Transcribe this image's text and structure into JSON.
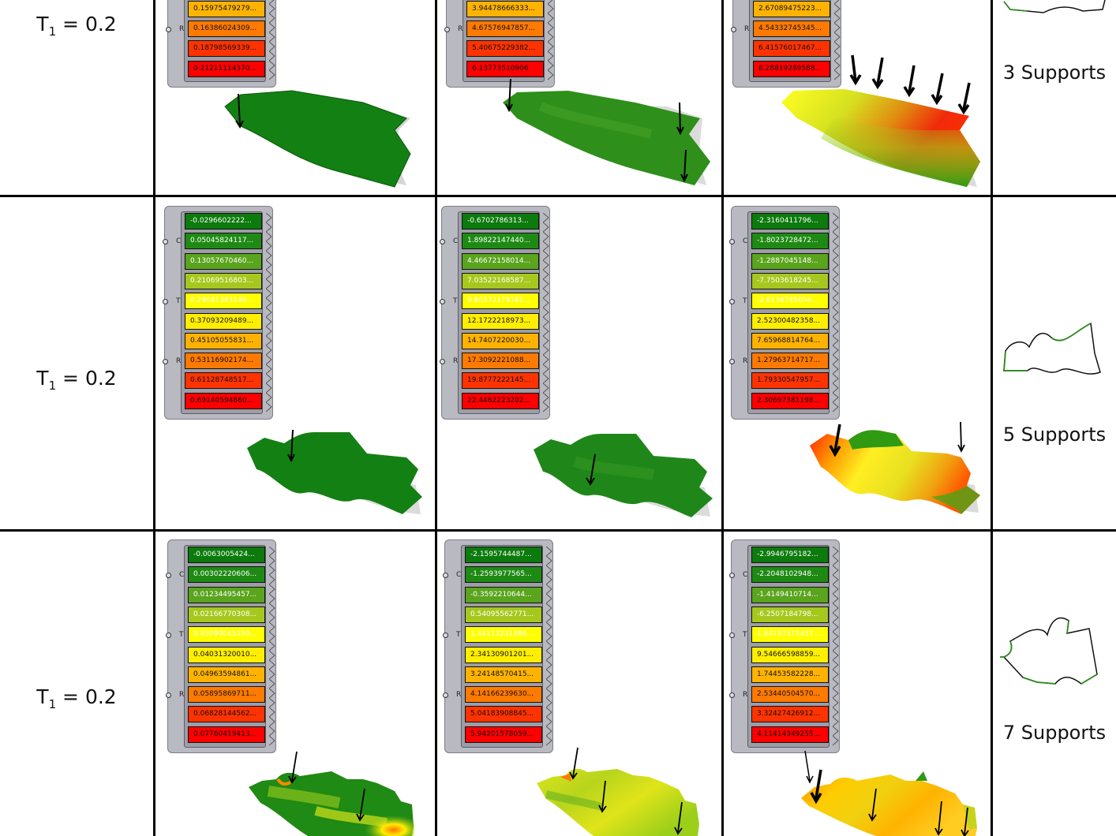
{
  "rows": [
    {
      "t_label": {
        "main": "T",
        "sub": "1",
        "value": " = 0.2"
      },
      "supports_label": "3 Supports",
      "panels": [
        {
          "values": [
            "0.15975479279...",
            "0.16386024309...",
            "0.18798569339...",
            "0.21211114370..."
          ]
        },
        {
          "values": [
            "3.94478666333...",
            "4.67576947857...",
            "5.40675229382...",
            "6.13773510906"
          ]
        },
        {
          "values": [
            "2.67089475223...",
            "4.54332745345...",
            "6.41576017467...",
            "8.28819289588..."
          ]
        }
      ]
    },
    {
      "t_label": {
        "main": "T",
        "sub": "1",
        "value": " = 0.2"
      },
      "supports_label": "5 Supports",
      "panels": [
        {
          "values": [
            "-0.0296602222...",
            "0.05045824117...",
            "0.13057670460...",
            "0.21069516803...",
            "0.29081363146...",
            "0.37093209489...",
            "0.45105055831...",
            "0.53116902174...",
            "0.61128748517...",
            "0.69140594860..."
          ]
        },
        {
          "values": [
            "-0.6702786313...",
            "1.89822147440...",
            "4.46672158014...",
            "7.03522168587...",
            "9.60372179161...",
            "12.1722218973...",
            "14.7407220030...",
            "17.3092221088...",
            "19.8777222145...",
            "22.4462223202..."
          ]
        },
        {
          "values": [
            "-2.3160411796...",
            "-1.8023728472...",
            "-1.2887045148...",
            "-7.7503618245...",
            "-2.6136785004...",
            "2.52300482358...",
            "7.65968814764...",
            "1.27963714717...",
            "1.79330547957...",
            "2.30697381198..."
          ]
        }
      ]
    },
    {
      "t_label": {
        "main": "T",
        "sub": "1",
        "value": " = 0.2"
      },
      "supports_label": "7 Supports",
      "panels": [
        {
          "values": [
            "-0.0063005424...",
            "0.00302220606...",
            "0.01234495457...",
            "0.02166770308...",
            "0.03099045159...",
            "0.04031320010...",
            "0.04963594861...",
            "0.05895869711...",
            "0.06828144562...",
            "0.07760419413..."
          ]
        },
        {
          "values": [
            "-2.1595744487...",
            "-1.2593977565...",
            "-0.3592210644...",
            "0.54095562771...",
            "1.44113231986...",
            "2.34130901201...",
            "3.24148570415...",
            "4.14166239630...",
            "5.04183908845...",
            "5.94201578059..."
          ]
        },
        {
          "values": [
            "-2.9946795182...",
            "-2.2048102948...",
            "-1.4149410714...",
            "-6.2507184798...",
            "1.64797375437...",
            "9.54666598859...",
            "1.74453582228...",
            "2.53440504570...",
            "3.32427426912...",
            "4.11414349255..."
          ]
        }
      ]
    }
  ],
  "port_labels": [
    "C",
    "T",
    "R"
  ],
  "gradient_colors": [
    "#0c7a0c",
    "#1e8a14",
    "#5aa41e",
    "#a6c81e",
    "#ffff00",
    "#ffee00",
    "#ffb300",
    "#ff7a00",
    "#ff3300",
    "#ff0000"
  ],
  "white_text_rows": [
    0,
    1,
    2,
    3,
    4
  ]
}
